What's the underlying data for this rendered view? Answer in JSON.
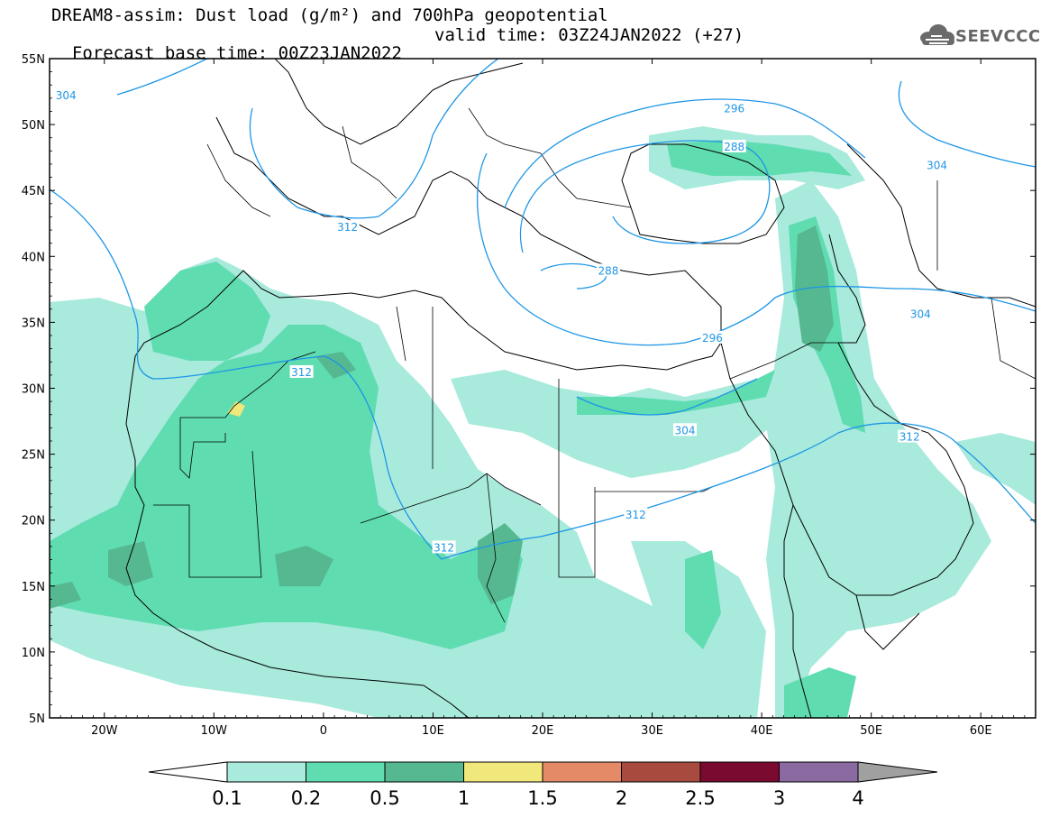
{
  "title": {
    "line1": "DREAM8-assim: Dust load (g/m²) and 700hPa geopotential",
    "line2_left": "Forecast base time: 00Z23JAN2022",
    "line2_right": "valid time: 03Z24JAN2022 (+27)"
  },
  "logo": {
    "text": "SEEVCCC",
    "icon": "cloud-logo-icon"
  },
  "map": {
    "lon_range": [
      -25,
      65
    ],
    "lat_range": [
      5,
      55
    ],
    "lat_ticks": [
      "55N",
      "50N",
      "45N",
      "40N",
      "35N",
      "30N",
      "25N",
      "20N",
      "15N",
      "10N",
      "5N"
    ],
    "lat_tick_values": [
      55,
      50,
      45,
      40,
      35,
      30,
      25,
      20,
      15,
      10,
      5
    ],
    "lon_ticks": [
      "20W",
      "10W",
      "0",
      "10E",
      "20E",
      "30E",
      "40E",
      "50E",
      "60E"
    ],
    "lon_tick_values": [
      -20,
      -10,
      0,
      10,
      20,
      30,
      40,
      50,
      60
    ],
    "geopotential_labels": [
      {
        "text": "304",
        "lon": -23.5,
        "lat": 52.2
      },
      {
        "text": "312",
        "lon": 2.2,
        "lat": 42.2
      },
      {
        "text": "296",
        "lon": 37.5,
        "lat": 51.2
      },
      {
        "text": "288",
        "lon": 37.5,
        "lat": 48.3
      },
      {
        "text": "288",
        "lon": 26.0,
        "lat": 38.9
      },
      {
        "text": "296",
        "lon": 35.5,
        "lat": 33.8
      },
      {
        "text": "304",
        "lon": 56.0,
        "lat": 46.9
      },
      {
        "text": "304",
        "lon": 54.5,
        "lat": 35.6
      },
      {
        "text": "312",
        "lon": -2.0,
        "lat": 31.2
      },
      {
        "text": "304",
        "lon": 33.0,
        "lat": 26.8
      },
      {
        "text": "312",
        "lon": 53.5,
        "lat": 26.3
      },
      {
        "text": "312",
        "lon": 28.5,
        "lat": 20.4
      },
      {
        "text": "312",
        "lon": 11.0,
        "lat": 17.9
      }
    ]
  },
  "colorbar": {
    "labels": [
      "0.1",
      "0.2",
      "0.5",
      "1",
      "1.5",
      "2",
      "2.5",
      "3",
      "4"
    ],
    "colors": [
      "#ffffff",
      "#a8eadc",
      "#5fdcb0",
      "#55b890",
      "#f0e87a",
      "#e58a66",
      "#a84a3e",
      "#7a0a30",
      "#8a6aa0",
      "#a0a0a0"
    ]
  }
}
